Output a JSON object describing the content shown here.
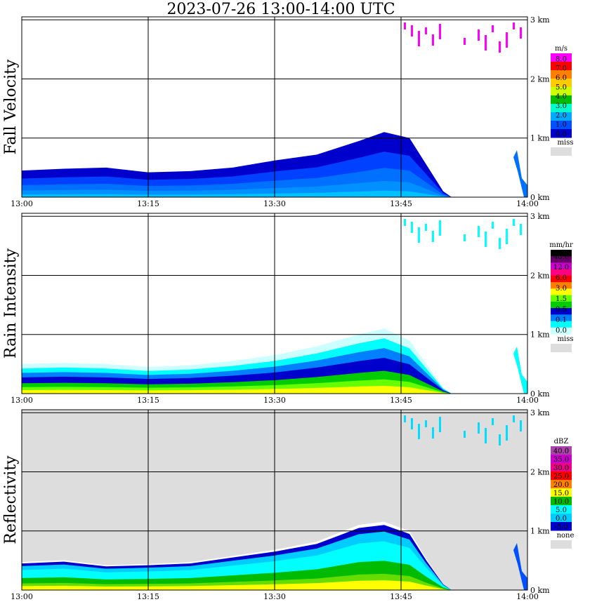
{
  "title": "2023-07-26   13:00-14:00 UTC",
  "chart_data": [
    {
      "type": "heatmap",
      "ylabel": "Fall Velocity",
      "x_ticks": [
        "13:00",
        "13:15",
        "13:30",
        "13:45",
        "14:00"
      ],
      "y_ticks": [
        "0 km",
        "1 km",
        "2 km",
        "3 km"
      ],
      "ylim_km": [
        0,
        3.05
      ],
      "legend": {
        "unit": "m/s",
        "labels": [
          "8.0",
          "7.0",
          "6.0",
          "5.0",
          "4.0",
          "3.0",
          "2.0",
          "1.0",
          "0.0"
        ],
        "colors": [
          "#ff00ff",
          "#ff0000",
          "#ff8000",
          "#ffcc00",
          "#ccff00",
          "#00bb00",
          "#00ffcc",
          "#00aaff",
          "#0050ff",
          "#0000cc"
        ],
        "miss_label": "miss",
        "miss_color": "#dddddd"
      },
      "background": "#ffffff",
      "echo_top_km": [
        [
          0,
          0.45
        ],
        [
          5,
          0.48
        ],
        [
          10,
          0.5
        ],
        [
          15,
          0.42
        ],
        [
          20,
          0.44
        ],
        [
          25,
          0.5
        ],
        [
          30,
          0.62
        ],
        [
          35,
          0.72
        ],
        [
          40,
          0.95
        ],
        [
          43,
          1.1
        ],
        [
          46,
          1.0
        ],
        [
          48,
          0.55
        ],
        [
          50,
          0.1
        ],
        [
          51,
          0.0
        ]
      ],
      "fall_velocity_layers": [
        {
          "x_min": 0,
          "x_max": 50,
          "height_fraction": 1.0,
          "color": "#0000cc"
        },
        {
          "x_min": 0,
          "x_max": 48,
          "height_fraction": 0.6,
          "color": "#0050ff"
        },
        {
          "x_min": 0,
          "x_max": 48,
          "height_fraction": 0.35,
          "color": "#00aaff"
        }
      ]
    },
    {
      "type": "heatmap",
      "ylabel": "Rain Intensity",
      "x_ticks": [
        "13:00",
        "13:15",
        "13:30",
        "13:45",
        "14:00"
      ],
      "y_ticks": [
        "0 km",
        "1 km",
        "2 km",
        "3 km"
      ],
      "ylim_km": [
        0,
        3.05
      ],
      "legend": {
        "unit": "mm/hr",
        "labels": [
          "48.0",
          "12.0",
          "6.0",
          "3.0",
          "1.5",
          "0.5",
          "0.1",
          "0.0"
        ],
        "colors": [
          "#000000",
          "#660066",
          "#cc00cc",
          "#ff0080",
          "#ff0000",
          "#ff8000",
          "#ffff00",
          "#66ff00",
          "#00cc00",
          "#0000cc",
          "#0080ff",
          "#00ffff",
          "#ccffff"
        ],
        "miss_label": "miss",
        "miss_color": "#dddddd"
      },
      "background": "#ffffff",
      "echo_top_km": [
        [
          0,
          0.5
        ],
        [
          5,
          0.52
        ],
        [
          10,
          0.5
        ],
        [
          15,
          0.45
        ],
        [
          20,
          0.48
        ],
        [
          25,
          0.55
        ],
        [
          30,
          0.65
        ],
        [
          35,
          0.8
        ],
        [
          40,
          1.0
        ],
        [
          43,
          1.1
        ],
        [
          46,
          0.9
        ],
        [
          48,
          0.5
        ],
        [
          50,
          0.1
        ],
        [
          51,
          0.0
        ]
      ]
    },
    {
      "type": "heatmap",
      "ylabel": "Reflectivity",
      "x_ticks": [
        "13:00",
        "13:15",
        "13:30",
        "13:45",
        "14:00"
      ],
      "y_ticks": [
        "0 km",
        "1 km",
        "2 km",
        "3 km"
      ],
      "ylim_km": [
        0,
        3.05
      ],
      "legend": {
        "unit": "dBZ",
        "labels": [
          "40.0",
          "35.0",
          "30.0",
          "25.0",
          "20.0",
          "15.0",
          "10.0",
          "5.0",
          "0.0",
          "-5.0"
        ],
        "colors": [
          "#aa44aa",
          "#cc00cc",
          "#ee0088",
          "#ff0000",
          "#ff8000",
          "#ffff00",
          "#00bb00",
          "#00ffff",
          "#00ccff",
          "#0000cc"
        ],
        "none_label": "none",
        "none_color": "#dddddd"
      },
      "background": "#dddddd",
      "echo_top_km": [
        [
          0,
          0.45
        ],
        [
          5,
          0.48
        ],
        [
          10,
          0.4
        ],
        [
          15,
          0.42
        ],
        [
          20,
          0.45
        ],
        [
          25,
          0.55
        ],
        [
          30,
          0.65
        ],
        [
          35,
          0.78
        ],
        [
          40,
          1.05
        ],
        [
          43,
          1.1
        ],
        [
          46,
          0.95
        ],
        [
          48,
          0.5
        ],
        [
          50,
          0.1
        ],
        [
          51,
          0.0
        ]
      ]
    }
  ]
}
